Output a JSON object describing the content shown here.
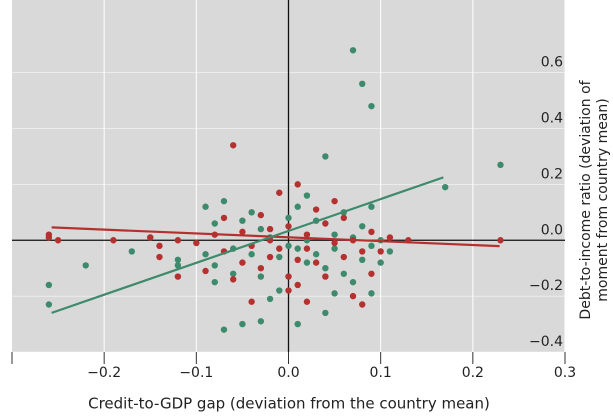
{
  "chart_data": {
    "type": "scatter",
    "xlabel": "Credit-to-GDP gap (deviation from the country mean)",
    "ylabel": [
      "Debt-to-income ratio (deviation of",
      "moment from country mean)"
    ],
    "xlim": [
      -0.3,
      0.3
    ],
    "ylim": [
      -0.4,
      0.86
    ],
    "xticks": [
      {
        "value": -0.2,
        "label": "−0.2"
      },
      {
        "value": -0.1,
        "label": "−0.1"
      },
      {
        "value": 0,
        "label": "0.0"
      },
      0.1,
      0.2,
      0.3
    ],
    "yticks": [
      {
        "value": -0.4,
        "label": "−0.4"
      },
      {
        "value": -0.2,
        "label": "−0.2"
      },
      {
        "value": 0,
        "label": "0.0"
      },
      0.2,
      0.4,
      0.6
    ],
    "grid": true,
    "series": [
      {
        "color": "#3d8a6c",
        "x": [
          -0.26,
          -0.26,
          -0.22,
          -0.17,
          -0.15,
          -0.12,
          -0.12,
          -0.09,
          -0.09,
          -0.08,
          -0.08,
          -0.07,
          -0.07,
          -0.06,
          -0.06,
          -0.05,
          -0.05,
          -0.04,
          -0.04,
          -0.03,
          -0.03,
          -0.03,
          -0.02,
          -0.01,
          -0.01,
          0.0,
          0.0,
          0.01,
          0.01,
          0.01,
          0.02,
          0.02,
          0.02,
          0.03,
          0.03,
          0.04,
          0.04,
          0.04,
          0.05,
          0.05,
          0.06,
          0.06,
          0.07,
          0.07,
          0.07,
          0.08,
          0.08,
          0.08,
          0.09,
          0.09,
          0.09,
          0.1,
          0.1,
          0.17,
          0.23,
          0.11,
          0.09,
          -0.02,
          0.05,
          -0.08
        ],
        "values": [
          -0.23,
          -0.16,
          -0.09,
          -0.04,
          0.01,
          -0.07,
          -0.09,
          -0.05,
          0.12,
          0.06,
          -0.09,
          -0.32,
          0.14,
          -0.03,
          -0.12,
          0.07,
          -0.3,
          0.1,
          -0.05,
          0.04,
          -0.13,
          -0.29,
          0.01,
          -0.06,
          -0.18,
          -0.02,
          0.08,
          -0.03,
          -0.3,
          0.12,
          0.16,
          0.0,
          -0.08,
          -0.05,
          0.07,
          0.3,
          -0.26,
          -0.1,
          0.02,
          -0.03,
          -0.12,
          0.1,
          0.68,
          -0.15,
          0.01,
          0.56,
          0.05,
          -0.07,
          0.48,
          -0.02,
          0.12,
          -0.08,
          0.0,
          0.19,
          0.27,
          -0.04,
          -0.19,
          -0.21,
          -0.19,
          -0.15
        ]
      },
      {
        "color": "#b5312f",
        "x": [
          -0.26,
          -0.26,
          -0.25,
          -0.19,
          -0.15,
          -0.14,
          -0.14,
          -0.12,
          -0.12,
          -0.1,
          -0.09,
          -0.08,
          -0.07,
          -0.07,
          -0.06,
          -0.06,
          -0.05,
          -0.05,
          -0.04,
          -0.04,
          -0.03,
          -0.03,
          -0.02,
          -0.02,
          -0.01,
          -0.01,
          0.0,
          0.0,
          0.01,
          0.01,
          0.01,
          0.02,
          0.02,
          0.02,
          0.03,
          0.03,
          0.04,
          0.04,
          0.05,
          0.05,
          0.06,
          0.06,
          0.07,
          0.07,
          0.08,
          0.08,
          0.09,
          0.09,
          0.1,
          0.13,
          0.23,
          0.11,
          0.0,
          -0.02
        ],
        "values": [
          0.02,
          0.01,
          0.0,
          0.0,
          0.01,
          -0.02,
          -0.06,
          0.0,
          -0.13,
          -0.01,
          -0.11,
          0.02,
          -0.04,
          0.08,
          0.34,
          -0.14,
          -0.08,
          0.03,
          -0.02,
          -0.22,
          0.09,
          -0.1,
          0.04,
          -0.06,
          0.17,
          -0.03,
          -0.13,
          0.05,
          -0.07,
          0.2,
          -0.16,
          0.02,
          -0.03,
          -0.22,
          0.11,
          -0.08,
          0.06,
          -0.13,
          0.14,
          -0.01,
          -0.06,
          0.08,
          -0.2,
          0.0,
          -0.04,
          -0.23,
          -0.12,
          0.03,
          -0.04,
          0.0,
          0.0,
          0.01,
          -0.18,
          0.0
        ]
      }
    ],
    "trendlines": [
      {
        "color": "#b5312f",
        "x": [
          -0.257,
          0.229
        ],
        "values": [
          0.046,
          -0.021
        ]
      },
      {
        "color": "#3d8a6c",
        "x": [
          -0.257,
          0.168
        ],
        "values": [
          -0.26,
          0.225
        ]
      }
    ]
  }
}
